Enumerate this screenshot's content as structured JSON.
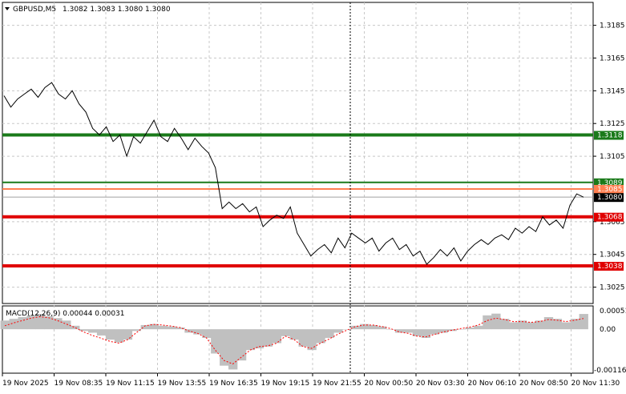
{
  "header": {
    "symbol": "GBPUSD,M5",
    "ohlc": "1.3082 1.3083 1.3080 1.3080",
    "dropdown_icon": "triangle-down-icon"
  },
  "macd": {
    "label": "MACD(12,26,9) 0.00044 0.00031",
    "histogram_color": "#c0c0c0",
    "signal_color": "#ff0000"
  },
  "price_scale": [
    "1.3185",
    "1.3165",
    "1.3145",
    "1.3125",
    "1.3105",
    "1.3065",
    "1.3045",
    "1.3025"
  ],
  "macd_scale": [
    "0.00051",
    "0.00",
    "-0.00116"
  ],
  "time_axis": [
    "19 Nov 2025",
    "19 Nov 08:35",
    "19 Nov 11:15",
    "19 Nov 13:55",
    "19 Nov 16:35",
    "19 Nov 19:15",
    "19 Nov 21:55",
    "20 Nov 00:50",
    "20 Nov 03:30",
    "20 Nov 06:10",
    "20 Nov 08:50",
    "20 Nov 11:30"
  ],
  "levels": [
    {
      "label": "1.3118",
      "price": 1.3118,
      "color": "#1a7a1a",
      "thick": true
    },
    {
      "label": "1.3089",
      "price": 1.3089,
      "color": "#1a7a1a",
      "thick": false
    },
    {
      "label": "1.3085",
      "price": 1.3085,
      "color": "#ff7f50",
      "thick": false
    },
    {
      "label": "1.3068",
      "price": 1.3068,
      "color": "#e00000",
      "thick": true
    },
    {
      "label": "1.3038",
      "price": 1.3038,
      "color": "#e00000",
      "thick": true
    }
  ],
  "current_price": {
    "label": "1.3080",
    "price": 1.308
  },
  "colors": {
    "green": "#1a7a1a",
    "red": "#e00000",
    "grid": "#c8c8c8",
    "price_line": "#000000"
  },
  "chart_data": {
    "type": "line",
    "title": "GBPUSD,M5",
    "ylim": [
      1.3015,
      1.3199
    ],
    "price": [
      1.3142,
      1.3135,
      1.314,
      1.3143,
      1.3146,
      1.3141,
      1.3147,
      1.315,
      1.3143,
      1.314,
      1.3145,
      1.3137,
      1.3132,
      1.3122,
      1.3118,
      1.3123,
      1.3114,
      1.3118,
      1.3105,
      1.3117,
      1.3113,
      1.312,
      1.3127,
      1.3117,
      1.3114,
      1.3122,
      1.3116,
      1.3109,
      1.3116,
      1.3111,
      1.3107,
      1.3098,
      1.3073,
      1.3077,
      1.3073,
      1.3076,
      1.3071,
      1.3074,
      1.3062,
      1.3066,
      1.3069,
      1.3067,
      1.3074,
      1.3058,
      1.3051,
      1.3044,
      1.3048,
      1.3051,
      1.3046,
      1.3055,
      1.3049,
      1.3058,
      1.3055,
      1.3052,
      1.3055,
      1.3047,
      1.3052,
      1.3055,
      1.3048,
      1.3051,
      1.3044,
      1.3047,
      1.3039,
      1.3043,
      1.3048,
      1.3044,
      1.3049,
      1.3041,
      1.3047,
      1.3051,
      1.3054,
      1.3051,
      1.3055,
      1.3057,
      1.3054,
      1.3061,
      1.3058,
      1.3062,
      1.3059,
      1.3068,
      1.3063,
      1.3066,
      1.3061,
      1.3075,
      1.3082,
      1.308
    ],
    "macd_histogram": [
      0.00025,
      0.0003,
      0.00035,
      0.0004,
      0.00044,
      0.00038,
      0.00032,
      0.00025,
      0.0001,
      -5e-05,
      -0.0001,
      -0.00018,
      -0.0003,
      -0.00038,
      -0.0003,
      -5e-05,
      0.00012,
      0.00015,
      0.0001,
      8e-05,
      5e-05,
      -0.0001,
      -0.00015,
      -0.00025,
      -0.0007,
      -0.00105,
      -0.00116,
      -0.0009,
      -0.0006,
      -0.00055,
      -0.0005,
      -0.0004,
      -0.0002,
      -0.0003,
      -0.0005,
      -0.0006,
      -0.0004,
      -0.00025,
      -0.0001,
      0.0,
      0.0001,
      0.00015,
      0.00012,
      8e-05,
      0.0,
      -0.0001,
      -0.0001,
      -0.0002,
      -0.00025,
      -0.00015,
      -0.0001,
      -5e-05,
      0.0,
      5e-05,
      0.0001,
      0.0004,
      0.00045,
      0.0003,
      0.0002,
      0.00025,
      0.0002,
      0.00025,
      0.00035,
      0.0003,
      0.0002,
      0.0003,
      0.00044
    ],
    "macd_signal": [
      0.0001,
      0.00018,
      0.00025,
      0.00032,
      0.00036,
      0.00033,
      0.00025,
      0.00015,
      5e-05,
      -8e-05,
      -0.00018,
      -0.00026,
      -0.00035,
      -0.0004,
      -0.0003,
      -0.0001,
      0.0001,
      0.00014,
      0.00012,
      9e-05,
      5e-05,
      -5e-05,
      -0.00012,
      -0.00025,
      -0.0006,
      -0.0009,
      -0.001,
      -0.0008,
      -0.0006,
      -0.0005,
      -0.00048,
      -0.0004,
      -0.0002,
      -0.0003,
      -0.0005,
      -0.00055,
      -0.0004,
      -0.00028,
      -0.00014,
      -3e-05,
      8e-05,
      0.00012,
      0.00012,
      8e-05,
      2e-05,
      -8e-05,
      -0.00012,
      -0.0002,
      -0.00022,
      -0.00015,
      -8e-05,
      -3e-05,
      2e-05,
      6e-05,
      0.00012,
      0.00025,
      0.00032,
      0.00028,
      0.00022,
      0.00022,
      0.0002,
      0.00022,
      0.00028,
      0.00026,
      0.00022,
      0.00026,
      0.00031
    ]
  }
}
